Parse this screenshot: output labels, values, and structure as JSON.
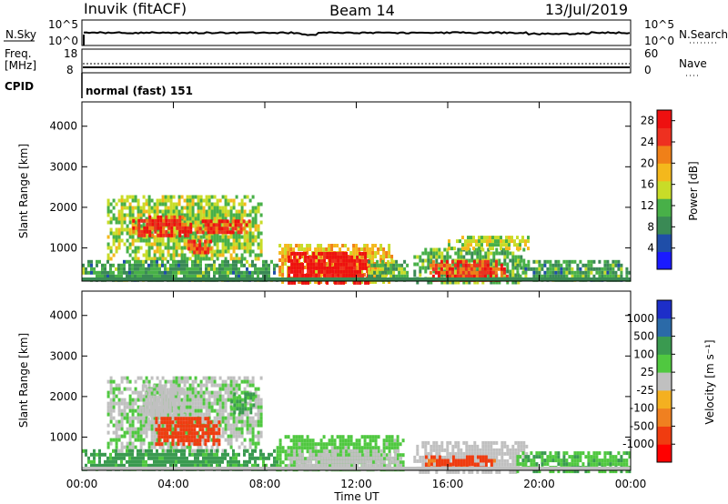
{
  "header": {
    "station": "Inuvik (fitACF)",
    "beam": "Beam 14",
    "date": "13/Jul/2019"
  },
  "strip": {
    "nsky_label": "N.Sky",
    "nsearch_label": "N.Search",
    "noise_ticks": [
      "10^5",
      "10^0"
    ],
    "freq_label_1": "Freq.",
    "freq_label_2": "[MHz]",
    "freq_ticks": [
      "18",
      "8"
    ],
    "nave_label": "Nave",
    "nave_ticks": [
      "60",
      "0"
    ],
    "cpid_label": "CPID",
    "cpid_value": "normal (fast) 151"
  },
  "power_panel": {
    "ylabel": "Slant Range [km]"
  },
  "velocity_panel": {
    "ylabel": "Slant Range [km]"
  },
  "x_axis": {
    "label": "Time UT",
    "ticks": [
      "00:00",
      "04:00",
      "08:00",
      "12:00",
      "16:00",
      "20:00",
      "00:00"
    ]
  },
  "colors": {
    "power_scale": [
      "#1a1aff",
      "#1f4ea8",
      "#3a8a55",
      "#48b048",
      "#c8dc28",
      "#f4b81c",
      "#f08018",
      "#ee3020",
      "#ee1010"
    ],
    "velocity_scale": [
      "#ff0000",
      "#f03c10",
      "#f08020",
      "#f4b020",
      "#c0c0c0",
      "#50c840",
      "#3a9a50",
      "#2b6aa8",
      "#1d2ec8"
    ]
  },
  "chart_data": [
    {
      "type": "heatmap",
      "quantity": "Power",
      "ylabel": "Slant Range [km]",
      "xlabel": "",
      "xlim_hours": [
        0,
        24
      ],
      "ylim_km": [
        180,
        4600
      ],
      "x_ticks": [
        "00:00",
        "04:00",
        "08:00",
        "12:00",
        "16:00",
        "20:00",
        "00:00"
      ],
      "y_ticks": [
        1000,
        2000,
        3000,
        4000
      ],
      "colorbar": {
        "label": "Power [dB]",
        "ticks": [
          4,
          8,
          12,
          16,
          20,
          24,
          28
        ],
        "range": [
          0,
          30
        ]
      },
      "regions": [
        {
          "t0": 1.1,
          "t1": 7.8,
          "r0": 700,
          "r1": 2300,
          "value": 14
        },
        {
          "t0": 2.2,
          "t1": 4.8,
          "r0": 1300,
          "r1": 1800,
          "value": 26
        },
        {
          "t0": 5.0,
          "t1": 7.3,
          "r0": 1400,
          "r1": 1700,
          "value": 26
        },
        {
          "t0": 4.5,
          "t1": 5.6,
          "r0": 850,
          "r1": 1200,
          "value": 24
        },
        {
          "t0": 0.0,
          "t1": 8.5,
          "r0": 180,
          "r1": 700,
          "value": 10
        },
        {
          "t0": 8.6,
          "t1": 13.6,
          "r0": 180,
          "r1": 1100,
          "value": 18
        },
        {
          "t0": 9.0,
          "t1": 12.5,
          "r0": 180,
          "r1": 900,
          "value": 29
        },
        {
          "t0": 12.5,
          "t1": 14.2,
          "r0": 200,
          "r1": 700,
          "value": 12
        },
        {
          "t0": 14.5,
          "t1": 19.3,
          "r0": 180,
          "r1": 1000,
          "value": 12
        },
        {
          "t0": 15.2,
          "t1": 18.6,
          "r0": 250,
          "r1": 700,
          "value": 25
        },
        {
          "t0": 19.0,
          "t1": 24.0,
          "r0": 180,
          "r1": 700,
          "value": 10
        },
        {
          "t0": 16.0,
          "t1": 19.5,
          "r0": 1000,
          "r1": 1300,
          "value": 16
        }
      ]
    },
    {
      "type": "heatmap",
      "quantity": "Velocity",
      "ylabel": "Slant Range [km]",
      "xlabel": "Time UT",
      "xlim_hours": [
        0,
        24
      ],
      "ylim_km": [
        180,
        4600
      ],
      "x_ticks": [
        "00:00",
        "04:00",
        "08:00",
        "12:00",
        "16:00",
        "20:00",
        "00:00"
      ],
      "y_ticks": [
        1000,
        2000,
        3000,
        4000
      ],
      "colorbar": {
        "label": "Velocity [m s⁻¹]",
        "ticks": [
          "1000",
          "500",
          "100",
          "25",
          "-25",
          "-100",
          "-500",
          "-1000"
        ]
      },
      "regions": [
        {
          "t0": 1.1,
          "t1": 7.8,
          "r0": 700,
          "r1": 2500,
          "value": 20
        },
        {
          "t0": 2.5,
          "t1": 4.5,
          "r0": 1400,
          "r1": 2300,
          "value": 0
        },
        {
          "t0": 3.2,
          "t1": 6.0,
          "r0": 800,
          "r1": 1500,
          "value": -200
        },
        {
          "t0": 6.5,
          "t1": 7.5,
          "r0": 1600,
          "r1": 2100,
          "value": 120
        },
        {
          "t0": 0.0,
          "t1": 8.5,
          "r0": 180,
          "r1": 700,
          "value": 150
        },
        {
          "t0": 8.5,
          "t1": 14.0,
          "r0": 180,
          "r1": 1050,
          "value": 60
        },
        {
          "t0": 9.0,
          "t1": 14.0,
          "r0": 200,
          "r1": 700,
          "value": 0
        },
        {
          "t0": 14.5,
          "t1": 19.5,
          "r0": 180,
          "r1": 900,
          "value": 0
        },
        {
          "t0": 15.0,
          "t1": 18.0,
          "r0": 200,
          "r1": 550,
          "value": -150
        },
        {
          "t0": 19.0,
          "t1": 24.0,
          "r0": 180,
          "r1": 650,
          "value": 80
        }
      ]
    }
  ]
}
